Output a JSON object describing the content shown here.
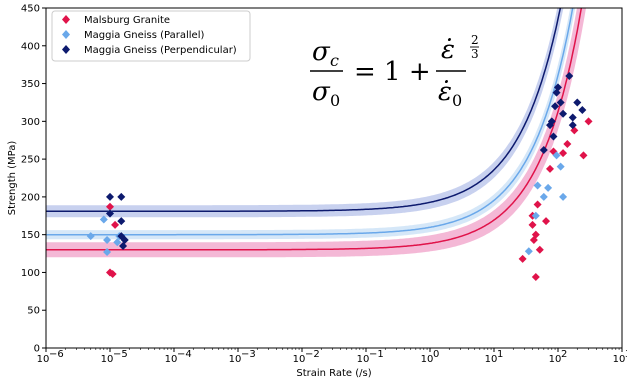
{
  "chart_data": {
    "type": "scatter",
    "xlabel": "Strain Rate (/s)",
    "ylabel": "Strength (MPa)",
    "xscale": "log",
    "xlim_exp": [
      -6,
      3
    ],
    "ylim": [
      0,
      450
    ],
    "x_tick_exponents": [
      -6,
      -5,
      -4,
      -3,
      -2,
      -1,
      0,
      1,
      2,
      3
    ],
    "x_tick_labels": [
      "10",
      "10",
      "10",
      "10",
      "10",
      "10",
      "10",
      "10",
      "10",
      "10"
    ],
    "x_tick_superscripts": [
      "−6",
      "−5",
      "−4",
      "−3",
      "−2",
      "−1",
      "0",
      "1",
      "2",
      "3"
    ],
    "y_ticks": [
      0,
      50,
      100,
      150,
      200,
      250,
      300,
      350,
      400,
      450
    ],
    "y_tick_labels": [
      "0",
      "50",
      "100",
      "150",
      "200",
      "250",
      "300",
      "350",
      "400",
      "450"
    ],
    "grid": false,
    "legend_position": "top-left",
    "equation": {
      "sigma": "σ",
      "sub_c": "c",
      "sub_0": "0",
      "equals_one_plus": "= 1 +",
      "eps_dot": "ε̇",
      "eps_dot_0": "ε̇",
      "exponent_num": "2",
      "exponent_den": "3"
    },
    "series": [
      {
        "name": "Malsburg Granite",
        "color": "#e0134a",
        "band_color": "#f0a0c8",
        "marker": "diamond",
        "fit": {
          "sigma0": 130,
          "band": 10,
          "edot0": 60
        },
        "points": [
          [
            1e-05,
            187
          ],
          [
            1e-05,
            100
          ],
          [
            1.1e-05,
            98
          ],
          [
            1.2e-05,
            163
          ],
          [
            28,
            118
          ],
          [
            40,
            175
          ],
          [
            40,
            163
          ],
          [
            42,
            143
          ],
          [
            45,
            94
          ],
          [
            45,
            150
          ],
          [
            48,
            190
          ],
          [
            52,
            130
          ],
          [
            65,
            168
          ],
          [
            75,
            237
          ],
          [
            85,
            260
          ],
          [
            120,
            258
          ],
          [
            140,
            270
          ],
          [
            180,
            288
          ],
          [
            250,
            255
          ],
          [
            300,
            300
          ]
        ]
      },
      {
        "name": "Maggia Gneiss (Parallel)",
        "color": "#6aa8ea",
        "band_color": "#c7dff5",
        "marker": "diamond",
        "fit": {
          "sigma0": 150,
          "band": 6,
          "edot0": 60
        },
        "points": [
          [
            5e-06,
            148
          ],
          [
            8e-06,
            170
          ],
          [
            9e-06,
            127
          ],
          [
            9e-06,
            143
          ],
          [
            1e-05,
            178
          ],
          [
            1.3e-05,
            140
          ],
          [
            1.4e-05,
            148
          ],
          [
            35,
            128
          ],
          [
            45,
            175
          ],
          [
            48,
            215
          ],
          [
            60,
            200
          ],
          [
            70,
            212
          ],
          [
            95,
            255
          ],
          [
            110,
            240
          ],
          [
            120,
            200
          ]
        ]
      },
      {
        "name": "Maggia Gneiss (Perpendicular)",
        "color": "#0d1a6e",
        "band_color": "#b6c1ea",
        "marker": "diamond",
        "fit": {
          "sigma0": 181,
          "band": 8,
          "edot0": 60
        },
        "points": [
          [
            1e-05,
            200
          ],
          [
            1e-05,
            178
          ],
          [
            1.5e-05,
            200
          ],
          [
            1.5e-05,
            168
          ],
          [
            1.5e-05,
            148
          ],
          [
            1.6e-05,
            135
          ],
          [
            1.7e-05,
            143
          ],
          [
            60,
            262
          ],
          [
            75,
            295
          ],
          [
            80,
            300
          ],
          [
            85,
            280
          ],
          [
            90,
            320
          ],
          [
            95,
            338
          ],
          [
            100,
            345
          ],
          [
            110,
            325
          ],
          [
            120,
            310
          ],
          [
            150,
            360
          ],
          [
            170,
            305
          ],
          [
            200,
            325
          ],
          [
            240,
            315
          ],
          [
            170,
            295
          ]
        ]
      }
    ]
  }
}
